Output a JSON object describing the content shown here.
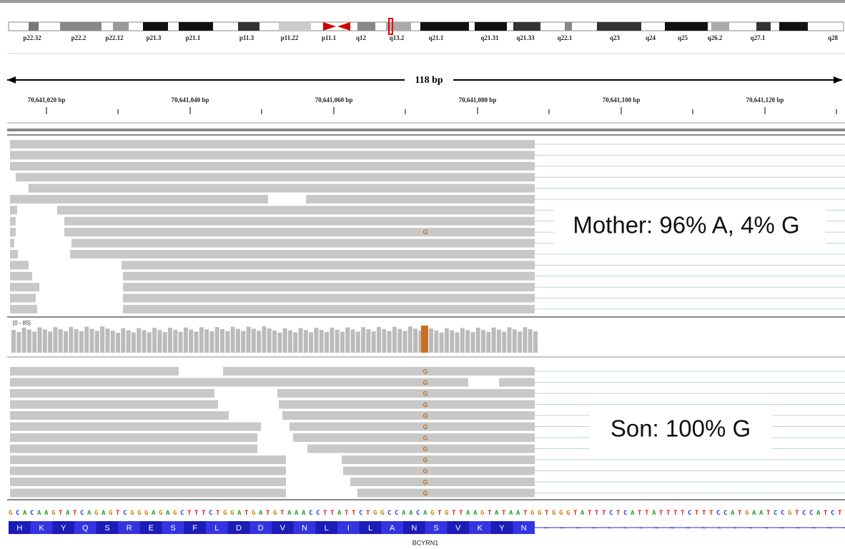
{
  "ideogram": {
    "bands": [
      "p22.32",
      "p22.2",
      "p22.12",
      "p21.3",
      "p21.1",
      "p11.3",
      "p11.22",
      "p11.1",
      "q12",
      "q13.2",
      "q21.1",
      "q21.31",
      "q21.33",
      "q22.1",
      "q23",
      "q24",
      "q25",
      "q26.2",
      "q27.1",
      "q28"
    ]
  },
  "ruler": {
    "span": "118 bp",
    "ticks": [
      "70,641,020 bp",
      "70,641,040 bp",
      "70,641,060 bp",
      "70,641,080 bp",
      "70,641,100 bp",
      "70,641,120 bp"
    ]
  },
  "tracks": {
    "mismatch_base": "G",
    "coverage_range": "[0 - 85]"
  },
  "annotations": {
    "mother": "Mother: 96% A, 4% G",
    "son": "Son: 100% G"
  },
  "reference": {
    "sequence": "GCACAAGTATCAGAGTCGGGAGAGCTTTCTGGATGATGTAAACCTTATTCTGGCCAACAGTGTTAAGTATAATGGTGGGTATTTCTCATTATTTTCTTTCCATGAATCCGTCCATCT",
    "amino_acids": [
      "H",
      "K",
      "Y",
      "Q",
      "S",
      "R",
      "E",
      "S",
      "F",
      "L",
      "D",
      "D",
      "V",
      "N",
      "L",
      "I",
      "L",
      "A",
      "N",
      "S",
      "V",
      "K",
      "Y",
      "N"
    ],
    "gene": "BCYRN1"
  }
}
